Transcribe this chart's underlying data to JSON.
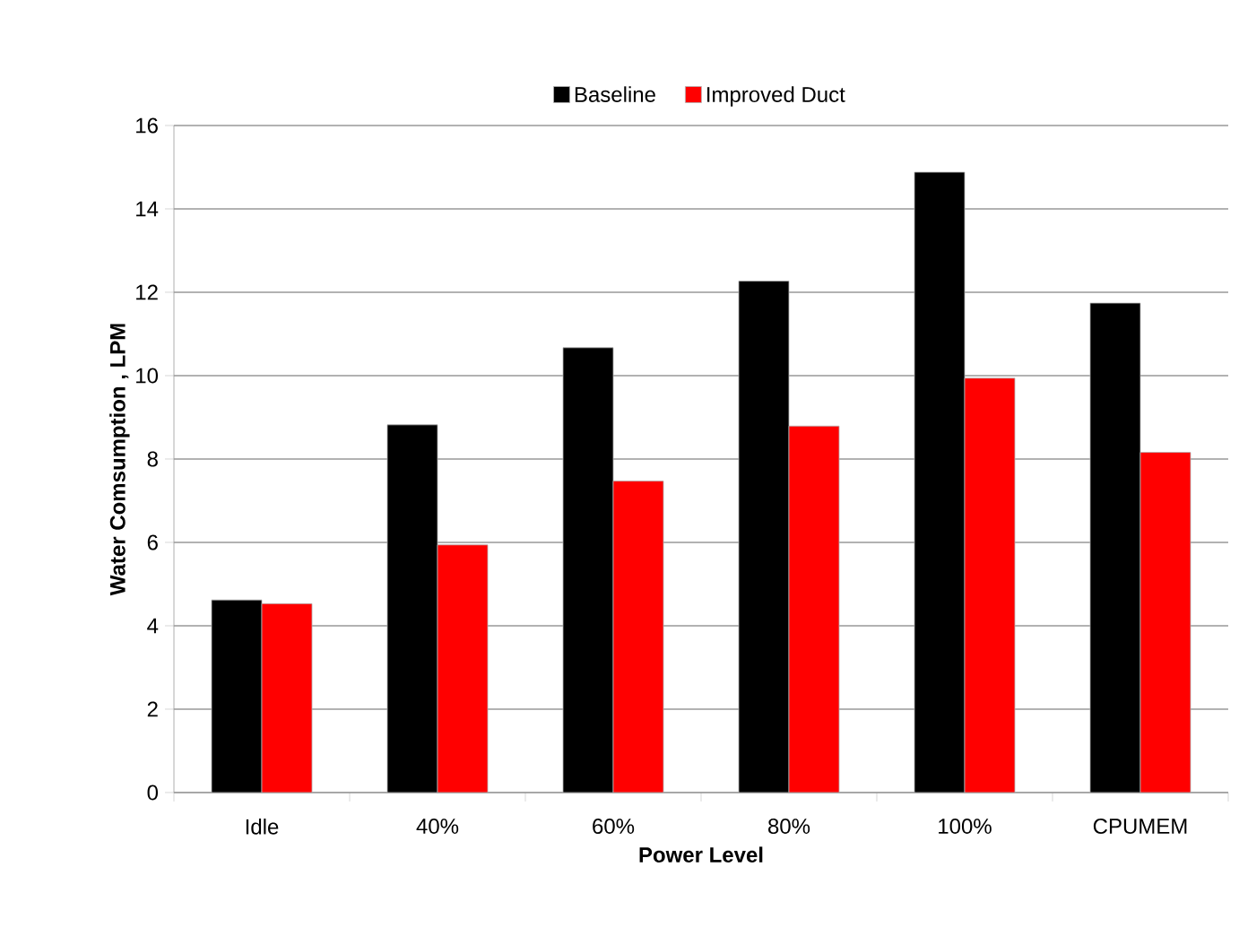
{
  "chart_data": {
    "type": "bar",
    "xlabel": "Power Level",
    "ylabel": "Water Comsumption , LPM",
    "categories": [
      "Idle",
      "40%",
      "60%",
      "80%",
      "100%",
      "CPUMEM"
    ],
    "series": [
      {
        "name": "Baseline",
        "color": "#000000",
        "values": [
          4.62,
          8.82,
          10.67,
          12.27,
          14.88,
          11.74
        ]
      },
      {
        "name": "Improved Duct",
        "color": "#ff0000",
        "values": [
          4.53,
          5.94,
          7.47,
          8.79,
          9.94,
          8.16
        ]
      }
    ],
    "ylim": [
      0,
      16
    ],
    "yticks": [
      0,
      2,
      4,
      6,
      8,
      10,
      12,
      14,
      16
    ],
    "grid": "y",
    "legend": "top"
  }
}
